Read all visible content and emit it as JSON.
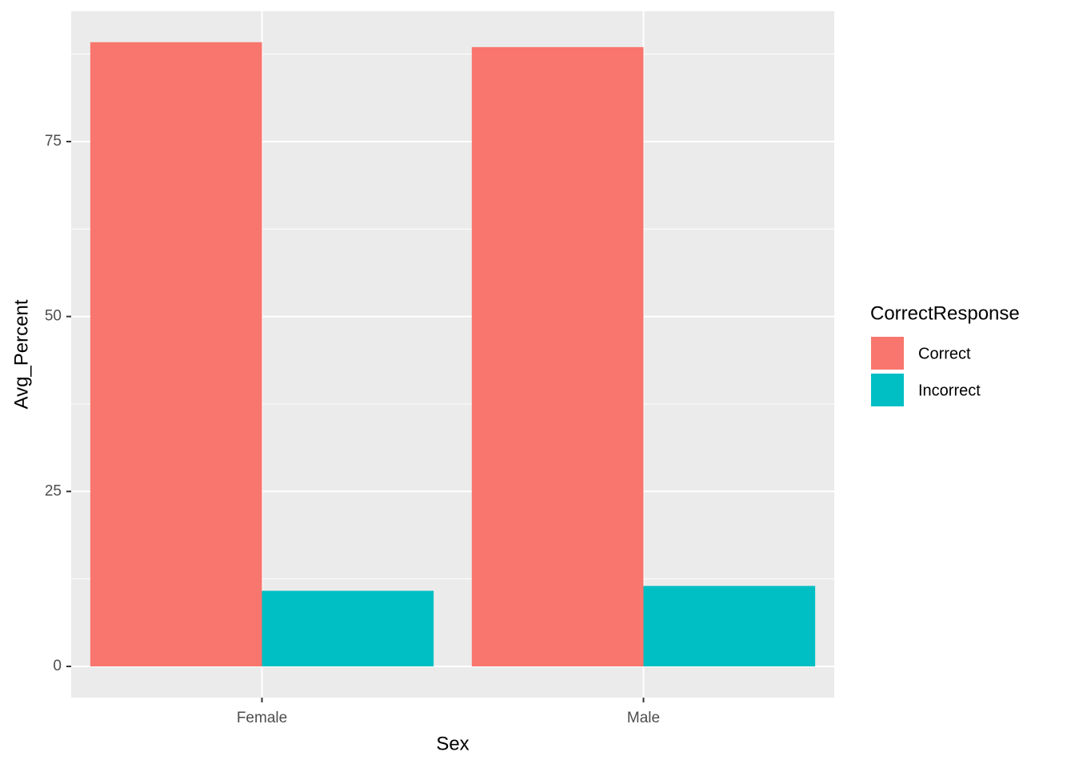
{
  "chart_data": {
    "type": "bar",
    "x_label": "Sex",
    "y_label": "Avg_Percent",
    "categories": [
      "Female",
      "Male"
    ],
    "series": [
      {
        "name": "Correct",
        "color": "#f8766d",
        "values": [
          89.2,
          88.5
        ]
      },
      {
        "name": "Incorrect",
        "color": "#00bfc4",
        "values": [
          10.8,
          11.5
        ]
      }
    ],
    "ylim": [
      -4.46,
      93.63
    ],
    "yticks": [
      0,
      25,
      50,
      75
    ],
    "grid": true,
    "legend_title": "CorrectResponse",
    "legend_position": "right"
  }
}
